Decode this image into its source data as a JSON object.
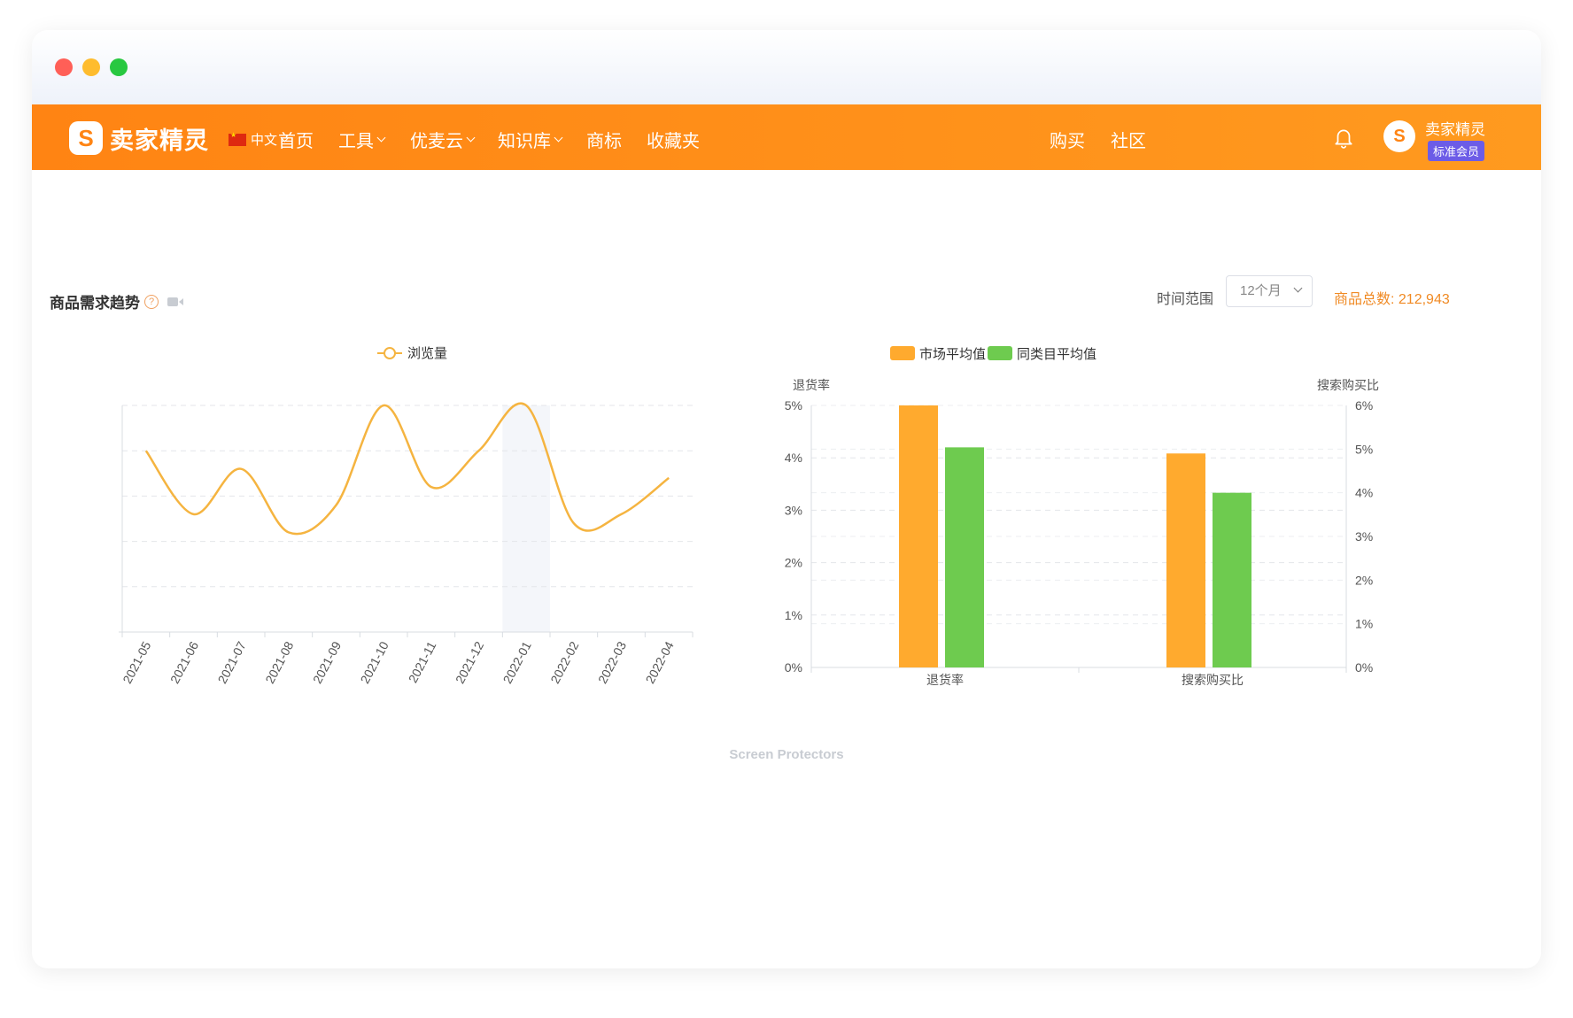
{
  "window": {
    "controls": {
      "close": "#ff5f57",
      "minimize": "#febc2e",
      "maximize": "#28c840"
    }
  },
  "nav": {
    "logo_text": "卖家精灵",
    "language": "中文",
    "menu": [
      {
        "label": "首页",
        "has_dropdown": false
      },
      {
        "label": "工具",
        "has_dropdown": true
      },
      {
        "label": "优麦云",
        "has_dropdown": true
      },
      {
        "label": "知识库",
        "has_dropdown": true
      },
      {
        "label": "商标",
        "has_dropdown": false
      },
      {
        "label": "收藏夹",
        "has_dropdown": false
      }
    ],
    "right": {
      "buy": "购买",
      "community": "社区",
      "username": "卖家精灵",
      "membership": "标准会员"
    },
    "colors": {
      "bar": "#ff8c17",
      "badge": "#6c5ce7"
    },
    "icons": [
      "bell-icon",
      "flag-cn-icon",
      "logo-icon"
    ]
  },
  "toolbar": {
    "title": "商品需求趋势",
    "range_label": "时间范围",
    "range_value": "12个月",
    "total_label": "商品总数:",
    "total_value": "212,943"
  },
  "category_label": "Screen Protectors",
  "chart_data": [
    {
      "type": "line",
      "legend": [
        "浏览量"
      ],
      "x": [
        "2021-05",
        "2021-06",
        "2021-07",
        "2021-08",
        "2021-09",
        "2021-10",
        "2021-11",
        "2021-12",
        "2022-01",
        "2022-02",
        "2022-03",
        "2022-04"
      ],
      "series": [
        {
          "name": "浏览量",
          "color": "#f5b440",
          "values": [
            4.5,
            3.8,
            4.3,
            3.6,
            3.9,
            5.0,
            4.1,
            4.5,
            5.0,
            3.7,
            3.8,
            4.2
          ]
        }
      ],
      "y_axis_labels_shown": false,
      "highlighted_category": "2022-01",
      "grid": true,
      "legend_position": "top-center"
    },
    {
      "type": "bar",
      "legend": [
        "市场平均值",
        "同类目平均值"
      ],
      "categories": [
        "退货率",
        "搜索购买比"
      ],
      "series": [
        {
          "name": "市场平均值",
          "color": "#ffaa2e",
          "values": [
            5.0,
            4.9
          ]
        },
        {
          "name": "同类目平均值",
          "color": "#6ecb4f",
          "values": [
            4.2,
            4.0
          ]
        }
      ],
      "ylabel_left": "退货率",
      "ylabel_right": "搜索购买比",
      "ylim_left": [
        0,
        5
      ],
      "ylim_right": [
        0,
        6
      ],
      "yticks_left": [
        "0%",
        "1%",
        "2%",
        "3%",
        "4%",
        "5%"
      ],
      "yticks_right": [
        "0%",
        "1%",
        "2%",
        "3%",
        "4%",
        "5%",
        "6%"
      ],
      "grid": true,
      "legend_position": "top-center"
    }
  ]
}
